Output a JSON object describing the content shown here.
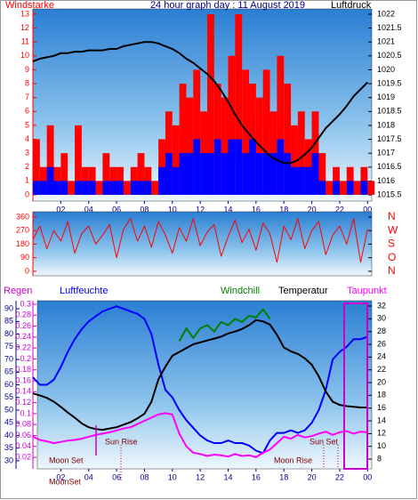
{
  "chart_data": [
    {
      "type": "bar",
      "title": "24 hour graph day : 11 August 2019",
      "ylabel": "Windstarke",
      "y2label": "Luftdruck",
      "x": [
        0,
        0.5,
        1,
        1.5,
        2,
        2.5,
        3,
        3.5,
        4,
        4.5,
        5,
        5.5,
        6,
        6.5,
        7,
        7.5,
        8,
        8.5,
        9,
        9.5,
        10,
        10.5,
        11,
        11.5,
        12,
        12.5,
        13,
        13.5,
        14,
        14.5,
        15,
        15.5,
        16,
        16.5,
        17,
        17.5,
        18,
        18.5,
        19,
        19.5,
        20,
        20.5,
        21,
        21.5,
        22,
        22.5,
        23,
        23.5,
        24
      ],
      "xlim": [
        0,
        24.3
      ],
      "xticks": [
        {
          "value": 2,
          "label": "02"
        },
        {
          "value": 4,
          "label": "04"
        },
        {
          "value": 6,
          "label": "06"
        },
        {
          "value": 8,
          "label": "08"
        },
        10,
        12,
        14,
        16,
        18,
        20,
        22,
        {
          "value": 24,
          "label": "00"
        }
      ],
      "ylim": [
        -0.45,
        13.38
      ],
      "yticks": [
        0,
        1,
        2,
        3,
        4,
        5,
        6,
        7,
        8,
        9,
        10,
        11,
        12,
        13
      ],
      "y2lim": [
        1015.28,
        1022.19
      ],
      "y2ticks": [
        1015.5,
        1016,
        1016.5,
        1017,
        1017.5,
        1018,
        1018.5,
        1019,
        1019.5,
        1020,
        1020.5,
        1021,
        1021.5,
        1022
      ],
      "series": [
        {
          "color": "#ff0000",
          "values": [
            4,
            2,
            5,
            2,
            3,
            1,
            5,
            2,
            2,
            1,
            3,
            2,
            2,
            1,
            2,
            3,
            2,
            1,
            4,
            6,
            5,
            8,
            7,
            9,
            6,
            13,
            8,
            7,
            10,
            13,
            9,
            8,
            7,
            9,
            6,
            10,
            8,
            5,
            6,
            4,
            6,
            3,
            1,
            2,
            1,
            2,
            1,
            2,
            1
          ]
        },
        {
          "color": "#0000ff",
          "values": [
            1,
            1,
            2,
            1,
            1,
            0,
            1,
            1,
            1,
            0,
            1,
            1,
            1,
            0,
            1,
            1,
            1,
            0,
            2,
            3,
            2,
            3,
            3,
            4,
            3,
            3,
            4,
            3,
            4,
            4,
            3,
            4,
            3,
            3,
            3,
            4,
            3,
            2,
            2,
            2,
            3,
            1,
            0,
            1,
            0,
            1,
            0,
            1,
            0
          ]
        },
        {
          "type": "line",
          "axis": "y2",
          "color": "#000000",
          "values": [
            1020.3,
            1020.4,
            1020.45,
            1020.5,
            1020.6,
            1020.6,
            1020.65,
            1020.65,
            1020.7,
            1020.7,
            1020.7,
            1020.75,
            1020.75,
            1020.85,
            1020.9,
            1020.95,
            1021.0,
            1021.0,
            1020.95,
            1020.85,
            1020.75,
            1020.6,
            1020.4,
            1020.25,
            1020.05,
            1019.85,
            1019.6,
            1019.25,
            1018.85,
            1018.4,
            1018.0,
            1017.7,
            1017.4,
            1017.15,
            1016.9,
            1016.75,
            1016.65,
            1016.65,
            1016.75,
            1016.95,
            1017.2,
            1017.55,
            1017.9,
            1018.15,
            1018.4,
            1018.7,
            1019.05,
            1019.3,
            1019.55
          ]
        }
      ]
    },
    {
      "type": "line",
      "x": [
        0,
        0.5,
        1,
        1.5,
        2,
        2.5,
        3,
        3.5,
        4,
        4.5,
        5,
        5.5,
        6,
        6.5,
        7,
        7.5,
        8,
        8.5,
        9,
        9.5,
        10,
        10.5,
        11,
        11.5,
        12,
        12.5,
        13,
        13.5,
        14,
        14.5,
        15,
        15.5,
        16,
        16.5,
        17,
        17.5,
        18,
        18.5,
        19,
        19.5,
        20,
        20.5,
        21,
        21.5,
        22,
        22.5,
        23,
        23.5,
        24
      ],
      "xlim": [
        0,
        24.3
      ],
      "ylim": [
        -30,
        395
      ],
      "yticks": [
        0,
        90,
        180,
        270,
        360
      ],
      "y2lim": [
        -30,
        395
      ],
      "y2ticks": [
        {
          "value": 360,
          "label": "N"
        },
        {
          "value": 270,
          "label": "W"
        },
        {
          "value": 180,
          "label": "S"
        },
        {
          "value": 90,
          "label": "O"
        },
        {
          "value": 0,
          "label": "N"
        }
      ],
      "series": [
        {
          "color": "#ff0000",
          "values": [
            210,
            300,
            150,
            270,
            200,
            330,
            120,
            250,
            300,
            180,
            240,
            310,
            90,
            280,
            350,
            200,
            300,
            160,
            330,
            240,
            120,
            290,
            200,
            350,
            170,
            260,
            310,
            100,
            230,
            340,
            190,
            280,
            140,
            320,
            250,
            60,
            300,
            210,
            350,
            150,
            270,
            330,
            110,
            240,
            300,
            180,
            350,
            60,
            280
          ]
        }
      ]
    },
    {
      "type": "line",
      "y3label": "Regen",
      "x": [
        0,
        0.5,
        1,
        1.5,
        2,
        2.5,
        3,
        3.5,
        4,
        4.5,
        5,
        5.5,
        6,
        6.5,
        7,
        7.5,
        8,
        8.5,
        9,
        9.5,
        10,
        10.5,
        11,
        11.5,
        12,
        12.5,
        13,
        13.5,
        14,
        14.5,
        15,
        15.5,
        16,
        16.5,
        17,
        17.5,
        18,
        18.5,
        19,
        19.5,
        20,
        20.5,
        21,
        21.5,
        22,
        22.5,
        23,
        23.5,
        24
      ],
      "xlim": [
        0,
        24.3
      ],
      "xticks": [
        {
          "value": 2,
          "label": "02"
        },
        {
          "value": 4,
          "label": "04"
        },
        {
          "value": 6,
          "label": "06"
        },
        {
          "value": 8,
          "label": "08"
        },
        10,
        12,
        14,
        16,
        18,
        20,
        22,
        {
          "value": 24,
          "label": "00"
        }
      ],
      "ylim": [
        26.8,
        93.2
      ],
      "yticks": [
        30,
        35,
        40,
        45,
        50,
        55,
        60,
        65,
        70,
        75,
        80,
        85,
        90
      ],
      "y2lim": [
        6.47,
        32.84
      ],
      "y2ticks": [
        8,
        10,
        12,
        14,
        16,
        18,
        20,
        22,
        24,
        26,
        28,
        30,
        32
      ],
      "y3lim": [
        -0.001,
        0.3065
      ],
      "y3ticks": [
        0.02,
        0.04,
        0.06,
        0.08,
        0.1,
        0.12,
        0.14,
        0.16,
        0.18,
        0.2,
        0.22,
        0.24,
        0.26,
        0.28,
        0.3
      ],
      "annotations": [
        "Sun Rise",
        "Sun Set",
        "Moon Set",
        "Moon Rise",
        "MoonSet"
      ],
      "series": [
        {
          "name": "Luftfeuchte",
          "color": "#0000ff",
          "values": [
            63,
            60,
            60,
            62,
            67,
            73,
            78,
            82,
            85,
            87,
            89,
            90,
            91,
            90,
            89,
            88,
            86,
            80,
            68,
            58,
            55,
            50,
            46,
            43,
            40,
            38,
            37,
            37,
            38,
            37,
            37,
            36,
            34,
            33,
            38,
            41,
            41,
            42,
            41,
            42,
            45,
            50,
            58,
            70,
            73,
            75,
            78,
            78,
            79
          ]
        },
        {
          "name": "Temperatur",
          "axis": "y2",
          "color": "#000000",
          "values": [
            18.3,
            18.0,
            17.6,
            17.0,
            16.2,
            15.3,
            14.5,
            13.6,
            13.0,
            12.7,
            12.6,
            12.8,
            13.0,
            13.4,
            13.8,
            14.4,
            15.1,
            17.0,
            20.5,
            22.5,
            24.2,
            24.8,
            25.4,
            26.0,
            26.3,
            26.6,
            26.9,
            27.2,
            27.7,
            28.0,
            28.4,
            29.0,
            29.8,
            29.6,
            29.1,
            27.5,
            25.5,
            24.9,
            24.5,
            23.8,
            22.8,
            21.0,
            18.6,
            17.0,
            16.5,
            16.3,
            16.2,
            16.1,
            16.1
          ]
        },
        {
          "name": "Windchill",
          "axis": "y2",
          "color": "#008000",
          "values": [
            null,
            null,
            null,
            null,
            null,
            null,
            null,
            null,
            null,
            null,
            null,
            null,
            null,
            null,
            null,
            null,
            null,
            null,
            null,
            null,
            null,
            26.5,
            28.5,
            27.0,
            28.5,
            29.0,
            28.0,
            29.5,
            29.0,
            30.0,
            29.5,
            30.5,
            30.2,
            31.5,
            30.0,
            null,
            null,
            null,
            null,
            null,
            null,
            null,
            null,
            null,
            null,
            null,
            null,
            null,
            null
          ]
        },
        {
          "name": "Taupunkt",
          "axis": "y2",
          "color": "#ff00ff",
          "values": [
            11.5,
            11.0,
            10.8,
            10.5,
            10.7,
            10.9,
            11.0,
            11.2,
            11.5,
            11.8,
            12.0,
            12.2,
            12.5,
            12.8,
            13.0,
            13.5,
            14.0,
            14.5,
            15.0,
            15.2,
            15.0,
            12.0,
            10.0,
            9.0,
            8.8,
            8.5,
            8.7,
            8.6,
            8.4,
            8.8,
            8.5,
            8.6,
            8.3,
            9.0,
            9.5,
            10.5,
            11.5,
            11.2,
            11.8,
            11.4,
            11.6,
            12.0,
            12.3,
            11.8,
            12.2,
            12.4,
            12.0,
            12.3,
            12.2
          ]
        }
      ]
    }
  ]
}
